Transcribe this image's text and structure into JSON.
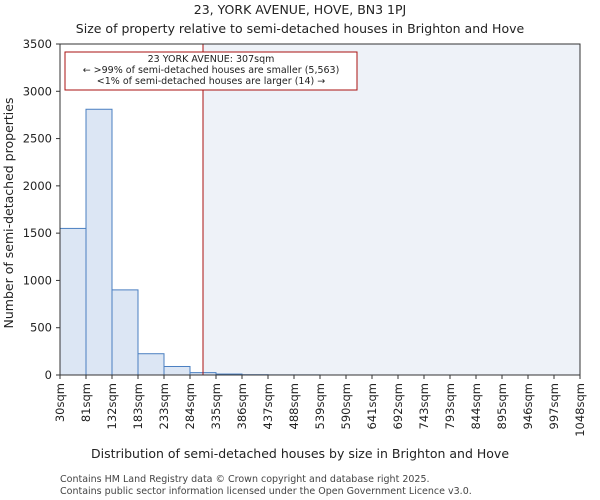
{
  "chart_data": {
    "type": "bar",
    "title": "23, YORK AVENUE, HOVE, BN3 1PJ",
    "subtitle": "Size of property relative to semi-detached houses in Brighton and Hove",
    "xlabel": "Distribution of semi-detached houses by size in Brighton and Hove",
    "ylabel": "Number of semi-detached properties",
    "x_tick_labels": [
      "30sqm",
      "81sqm",
      "132sqm",
      "183sqm",
      "233sqm",
      "284sqm",
      "335sqm",
      "386sqm",
      "437sqm",
      "488sqm",
      "539sqm",
      "590sqm",
      "641sqm",
      "692sqm",
      "743sqm",
      "793sqm",
      "844sqm",
      "895sqm",
      "946sqm",
      "997sqm",
      "1048sqm"
    ],
    "values": [
      1550,
      2810,
      900,
      225,
      90,
      25,
      10,
      3,
      1,
      1,
      0,
      0,
      0,
      0,
      0,
      0,
      0,
      0,
      0,
      0
    ],
    "ylim": [
      0,
      3500
    ],
    "y_ticks": [
      0,
      500,
      1000,
      1500,
      2000,
      2500,
      3000,
      3500
    ],
    "grid": false,
    "property_line": {
      "value_index": 5.5,
      "color": "#aa1111"
    },
    "annotation": {
      "line1": "23 YORK AVENUE: 307sqm",
      "line2": "← >99% of semi-detached houses are smaller (5,563)",
      "line3": "<1% of semi-detached houses are larger (14) →"
    },
    "colors": {
      "bar_fill": "#dce6f4",
      "bar_stroke": "#4a7fc1",
      "highlight_bg": "#eef2f8"
    }
  },
  "footer": {
    "line1": "Contains HM Land Registry data © Crown copyright and database right 2025.",
    "line2": "Contains public sector information licensed under the Open Government Licence v3.0."
  }
}
